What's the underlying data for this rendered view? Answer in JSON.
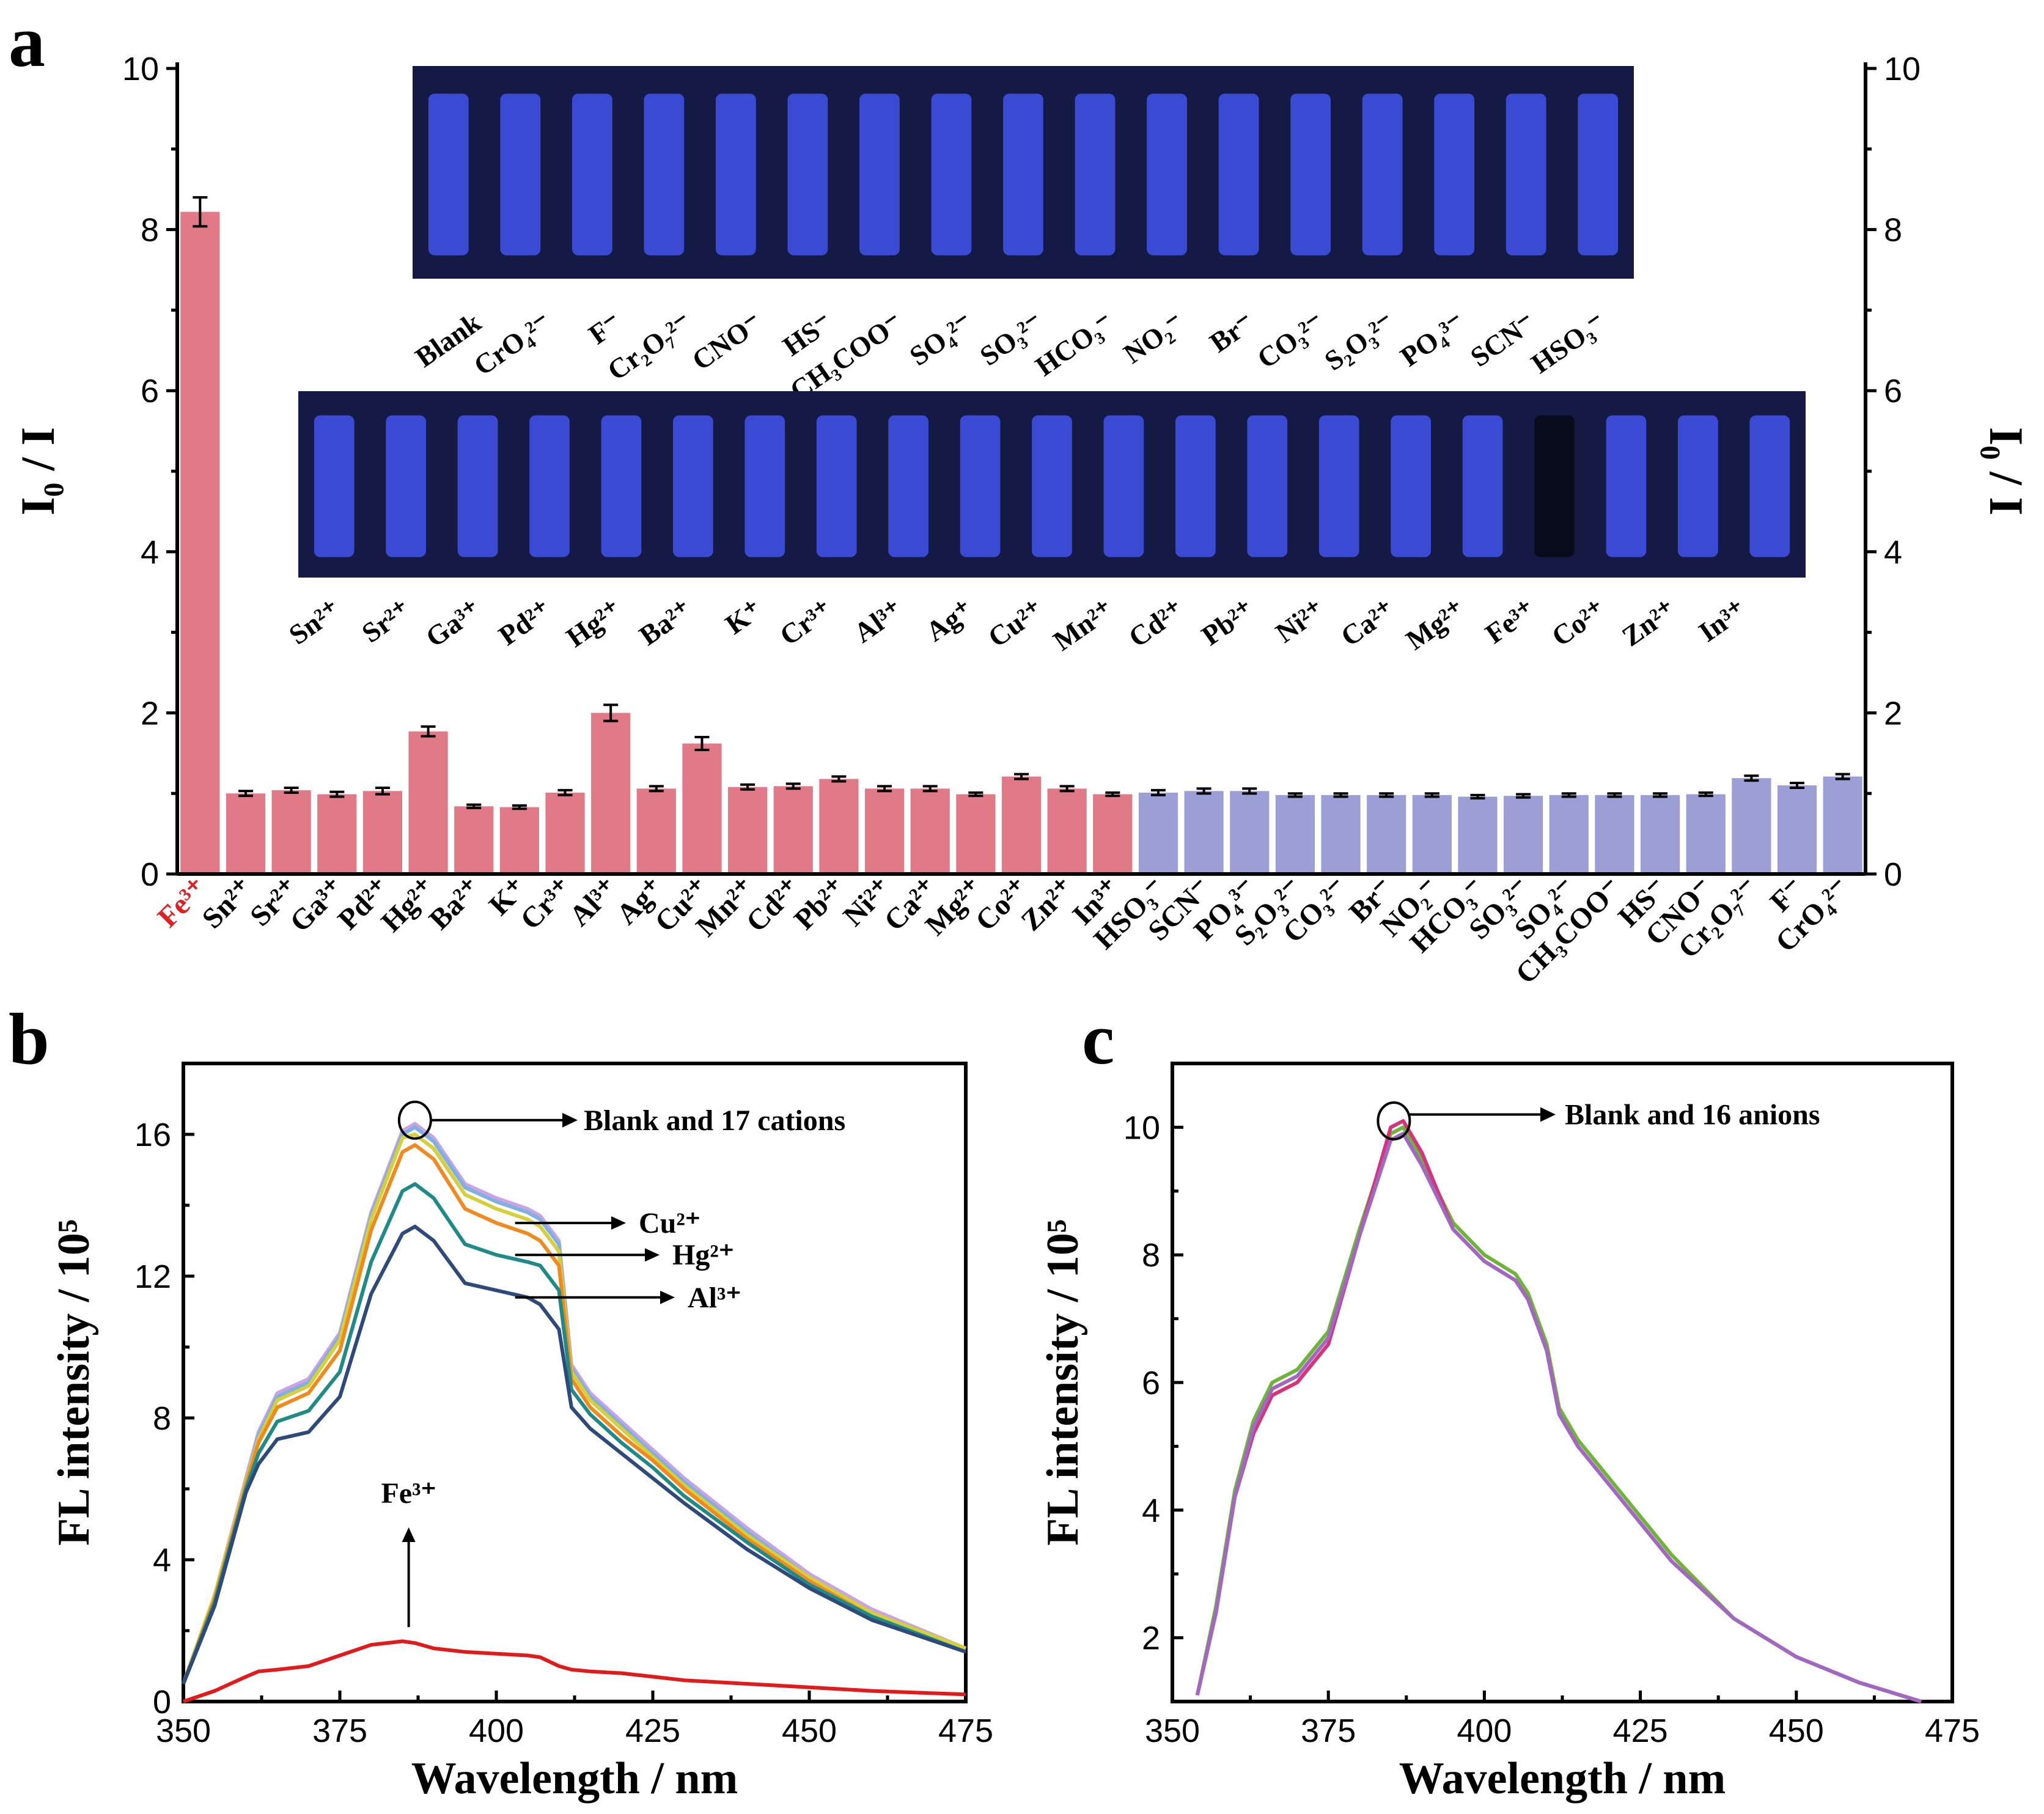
{
  "panels": {
    "a": "a",
    "b": "b",
    "c": "c"
  },
  "colors": {
    "cation_bar": "#e07a86",
    "anion_bar": "#9b9fd6",
    "highlight_text": "#e02020",
    "strip_bg": "#141a44",
    "strip_fill": "#3f4ee0",
    "fe_curve": "#e01b1b"
  },
  "chart_data": [
    {
      "id": "a",
      "type": "bar",
      "ylabel_left": "I₀ / I",
      "ylabel_right": "I₀ / I",
      "ylim": [
        0,
        10
      ],
      "yticks": [
        0,
        2,
        4,
        6,
        8,
        10
      ],
      "highlight": "Fe³⁺",
      "categories": [
        "Fe³⁺",
        "Sn²⁺",
        "Sr²⁺",
        "Ga³⁺",
        "Pd²⁺",
        "Hg²⁺",
        "Ba²⁺",
        "K⁺",
        "Cr³⁺",
        "Al³⁺",
        "Ag⁺",
        "Cu²⁺",
        "Mn²⁺",
        "Cd²⁺",
        "Pb²⁺",
        "Ni²⁺",
        "Ca²⁺",
        "Mg²⁺",
        "Co²⁺",
        "Zn²⁺",
        "In³⁺",
        "HSO₃⁻",
        "SCN⁻",
        "PO₄³⁻",
        "S₂O₃²⁻",
        "CO₃²⁻",
        "Br⁻",
        "NO₂⁻",
        "HCO₃⁻",
        "SO₃²⁻",
        "SO₄²⁻",
        "CH₃COO⁻",
        "HS⁻",
        "CNO⁻",
        "Cr₂O₇²⁻",
        "F⁻",
        "CrO₄²⁻"
      ],
      "groups": [
        "cation",
        "cation",
        "cation",
        "cation",
        "cation",
        "cation",
        "cation",
        "cation",
        "cation",
        "cation",
        "cation",
        "cation",
        "cation",
        "cation",
        "cation",
        "cation",
        "cation",
        "cation",
        "cation",
        "cation",
        "cation",
        "anion",
        "anion",
        "anion",
        "anion",
        "anion",
        "anion",
        "anion",
        "anion",
        "anion",
        "anion",
        "anion",
        "anion",
        "anion",
        "anion",
        "anion",
        "anion"
      ],
      "values": [
        8.22,
        1.0,
        1.04,
        0.99,
        1.03,
        1.77,
        0.84,
        0.83,
        1.01,
        2.0,
        1.06,
        1.62,
        1.08,
        1.09,
        1.18,
        1.06,
        1.06,
        0.99,
        1.21,
        1.06,
        0.99,
        1.01,
        1.03,
        1.03,
        0.98,
        0.98,
        0.98,
        0.98,
        0.96,
        0.97,
        0.98,
        0.98,
        0.98,
        0.99,
        1.19,
        1.1,
        1.21
      ],
      "errors": [
        0.18,
        0.03,
        0.03,
        0.03,
        0.04,
        0.06,
        0.02,
        0.02,
        0.03,
        0.1,
        0.03,
        0.08,
        0.03,
        0.03,
        0.03,
        0.03,
        0.03,
        0.02,
        0.03,
        0.03,
        0.02,
        0.03,
        0.03,
        0.03,
        0.02,
        0.02,
        0.02,
        0.02,
        0.02,
        0.02,
        0.02,
        0.02,
        0.02,
        0.02,
        0.03,
        0.03,
        0.03
      ],
      "inset_top_labels": [
        "Blank",
        "CrO₄²⁻",
        "F⁻",
        "Cr₂O₇²⁻",
        "CNO⁻",
        "HS⁻",
        "CH₃COO⁻",
        "SO₄²⁻",
        "SO₃²⁻",
        "HCO₃⁻",
        "NO₂⁻",
        "Br⁻",
        "CO₃²⁻",
        "S₂O₃²⁻",
        "PO₄³⁻",
        "SCN⁻",
        "HSO₃⁻"
      ],
      "inset_bottom_labels": [
        "Sn²⁺",
        "Sr²⁺",
        "Ga³⁺",
        "Pd²⁺",
        "Hg²⁺",
        "Ba²⁺",
        "K⁺",
        "Cr³⁺",
        "Al³⁺",
        "Ag⁺",
        "Cu²⁺",
        "Mn²⁺",
        "Cd²⁺",
        "Pb²⁺",
        "Ni²⁺",
        "Ca²⁺",
        "Mg²⁺",
        "Fe³⁺",
        "Co²⁺",
        "Zn²⁺",
        "In³⁺"
      ]
    },
    {
      "id": "b",
      "type": "line",
      "xlabel": "Wavelength / nm",
      "ylabel": "FL intensity / 10⁵",
      "xlim": [
        350,
        475
      ],
      "ylim": [
        0,
        18
      ],
      "xticks": [
        350,
        375,
        400,
        425,
        450,
        475
      ],
      "yticks": [
        0,
        4,
        8,
        12,
        16
      ],
      "annotations": [
        "Blank and 17 cations",
        "Cu²⁺",
        "Hg²⁺",
        "Al³⁺",
        "Fe³⁺"
      ],
      "x": [
        350,
        355,
        360,
        362,
        365,
        370,
        375,
        380,
        385,
        387,
        390,
        395,
        400,
        405,
        407,
        410,
        412,
        415,
        420,
        425,
        430,
        440,
        450,
        460,
        475
      ],
      "series": [
        {
          "name": "Blank and 17 cations (upper)",
          "color": "#c9a3e3",
          "values": [
            0.5,
            3.0,
            6.3,
            7.6,
            8.7,
            9.1,
            10.4,
            13.8,
            16.1,
            16.3,
            15.9,
            14.6,
            14.2,
            13.9,
            13.7,
            13.0,
            9.5,
            8.7,
            7.9,
            7.1,
            6.3,
            4.9,
            3.6,
            2.6,
            1.5
          ]
        },
        {
          "name": "Blank and 17 cations",
          "color": "#7fb0e0",
          "values": [
            0.5,
            3.0,
            6.2,
            7.5,
            8.6,
            9.0,
            10.3,
            13.7,
            16.0,
            16.2,
            15.8,
            14.5,
            14.1,
            13.8,
            13.6,
            12.9,
            9.4,
            8.6,
            7.8,
            7.0,
            6.2,
            4.8,
            3.5,
            2.5,
            1.5
          ]
        },
        {
          "name": "Blank and 17 cations (yellow)",
          "color": "#d4cf3a",
          "values": [
            0.5,
            3.0,
            6.2,
            7.4,
            8.5,
            8.9,
            10.2,
            13.6,
            15.9,
            16.0,
            15.6,
            14.3,
            13.9,
            13.6,
            13.4,
            12.7,
            9.3,
            8.5,
            7.7,
            6.9,
            6.1,
            4.7,
            3.5,
            2.5,
            1.5
          ]
        },
        {
          "name": "Cu²⁺",
          "color": "#f08a1e",
          "values": [
            0.5,
            2.9,
            6.1,
            7.3,
            8.3,
            8.7,
            9.9,
            13.3,
            15.5,
            15.7,
            15.3,
            13.9,
            13.5,
            13.2,
            13.0,
            12.3,
            9.1,
            8.3,
            7.5,
            6.8,
            6.0,
            4.6,
            3.4,
            2.4,
            1.4
          ]
        },
        {
          "name": "Hg²⁺",
          "color": "#1f8a86",
          "values": [
            0.5,
            2.8,
            6.0,
            7.0,
            7.9,
            8.2,
            9.3,
            12.4,
            14.4,
            14.6,
            14.2,
            12.9,
            12.6,
            12.4,
            12.3,
            11.6,
            8.8,
            8.1,
            7.3,
            6.6,
            5.8,
            4.5,
            3.3,
            2.4,
            1.4
          ]
        },
        {
          "name": "Al³⁺",
          "color": "#2d4a7a",
          "values": [
            0.5,
            2.7,
            5.9,
            6.7,
            7.4,
            7.6,
            8.6,
            11.5,
            13.2,
            13.4,
            13.0,
            11.8,
            11.6,
            11.4,
            11.2,
            10.5,
            8.3,
            7.7,
            7.0,
            6.3,
            5.6,
            4.3,
            3.2,
            2.3,
            1.4
          ]
        },
        {
          "name": "Fe³⁺",
          "color": "#e01b1b",
          "values": [
            0.0,
            0.3,
            0.7,
            0.85,
            0.9,
            1.0,
            1.3,
            1.6,
            1.7,
            1.65,
            1.5,
            1.4,
            1.35,
            1.3,
            1.25,
            1.0,
            0.9,
            0.85,
            0.8,
            0.7,
            0.6,
            0.5,
            0.4,
            0.3,
            0.2
          ]
        }
      ]
    },
    {
      "id": "c",
      "type": "line",
      "xlabel": "Wavelength / nm",
      "ylabel": "FL intensity / 10⁵",
      "xlim": [
        350,
        475
      ],
      "ylim": [
        1,
        11
      ],
      "xticks": [
        350,
        375,
        400,
        425,
        450,
        475
      ],
      "yticks": [
        2,
        4,
        6,
        8,
        10
      ],
      "annotations": [
        "Blank and 16 anions"
      ],
      "x": [
        354,
        357,
        360,
        363,
        366,
        370,
        375,
        380,
        385,
        387,
        390,
        395,
        400,
        405,
        407,
        410,
        412,
        415,
        420,
        425,
        430,
        440,
        450,
        460,
        470
      ],
      "series": [
        {
          "name": "Blank and 16 anions (green)",
          "color": "#6fb43a",
          "values": [
            1.1,
            2.5,
            4.3,
            5.4,
            6.0,
            6.2,
            6.8,
            8.4,
            9.9,
            10.0,
            9.5,
            8.5,
            8.0,
            7.7,
            7.4,
            6.6,
            5.6,
            5.1,
            4.5,
            3.9,
            3.3,
            2.3,
            1.7,
            1.3,
            1.0
          ]
        },
        {
          "name": "Blank and 16 anions (magenta)",
          "color": "#d6337a",
          "values": [
            1.1,
            2.4,
            4.2,
            5.2,
            5.8,
            6.0,
            6.6,
            8.3,
            10.0,
            10.1,
            9.6,
            8.4,
            7.9,
            7.6,
            7.3,
            6.5,
            5.5,
            5.0,
            4.4,
            3.8,
            3.2,
            2.3,
            1.7,
            1.3,
            1.0
          ]
        },
        {
          "name": "Blank and 16 anions (purple)",
          "color": "#a068c0",
          "values": [
            1.1,
            2.4,
            4.2,
            5.3,
            5.9,
            6.1,
            6.7,
            8.3,
            9.8,
            9.9,
            9.4,
            8.4,
            7.9,
            7.6,
            7.3,
            6.5,
            5.5,
            5.0,
            4.4,
            3.8,
            3.2,
            2.3,
            1.7,
            1.3,
            1.0
          ]
        }
      ]
    }
  ]
}
